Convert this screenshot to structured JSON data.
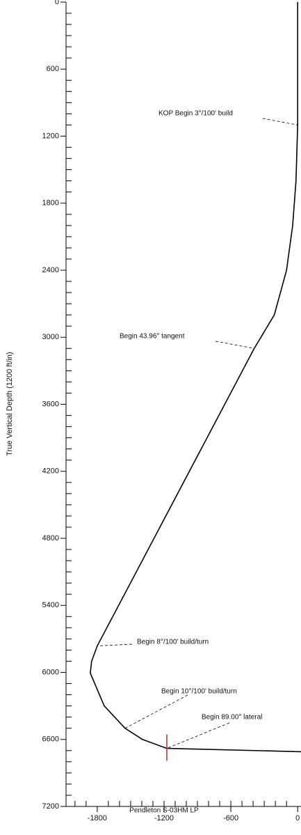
{
  "chart_data": {
    "type": "line",
    "y_label": "True Vertical Depth (1200 ft/in)",
    "xlim": [
      -2080,
      30
    ],
    "ylim": [
      0,
      7200
    ],
    "y_inverted": true,
    "xticks": [
      -1800,
      -1200,
      -600,
      0
    ],
    "yticks": [
      0,
      600,
      1200,
      1800,
      2400,
      3000,
      3600,
      4200,
      4800,
      5400,
      6000,
      6600,
      7200
    ],
    "series": [
      {
        "color": "#000000",
        "x": [
          0,
          0,
          -15,
          -45,
          -100,
          -210,
          -390,
          -1800,
          -1850,
          -1862,
          -1737,
          -1550,
          -1394,
          -1175,
          30
        ],
        "values": [
          0,
          1100,
          1600,
          2000,
          2400,
          2800,
          3100,
          5763,
          5900,
          6006,
          6300,
          6500,
          6600,
          6680,
          6710
        ]
      }
    ],
    "annotations": [
      {
        "text": "KOP Begin 3°/100' build"
      },
      {
        "text": "Begin 43.96° tangent"
      },
      {
        "text": "Begin 8°/100' build/turn"
      },
      {
        "text": "Begin 10°/100' build/turn"
      },
      {
        "text": "Begin 89.00° lateral"
      }
    ],
    "target": {
      "label": "Pendleton S-03HM LP",
      "color": "#d0202a"
    }
  }
}
